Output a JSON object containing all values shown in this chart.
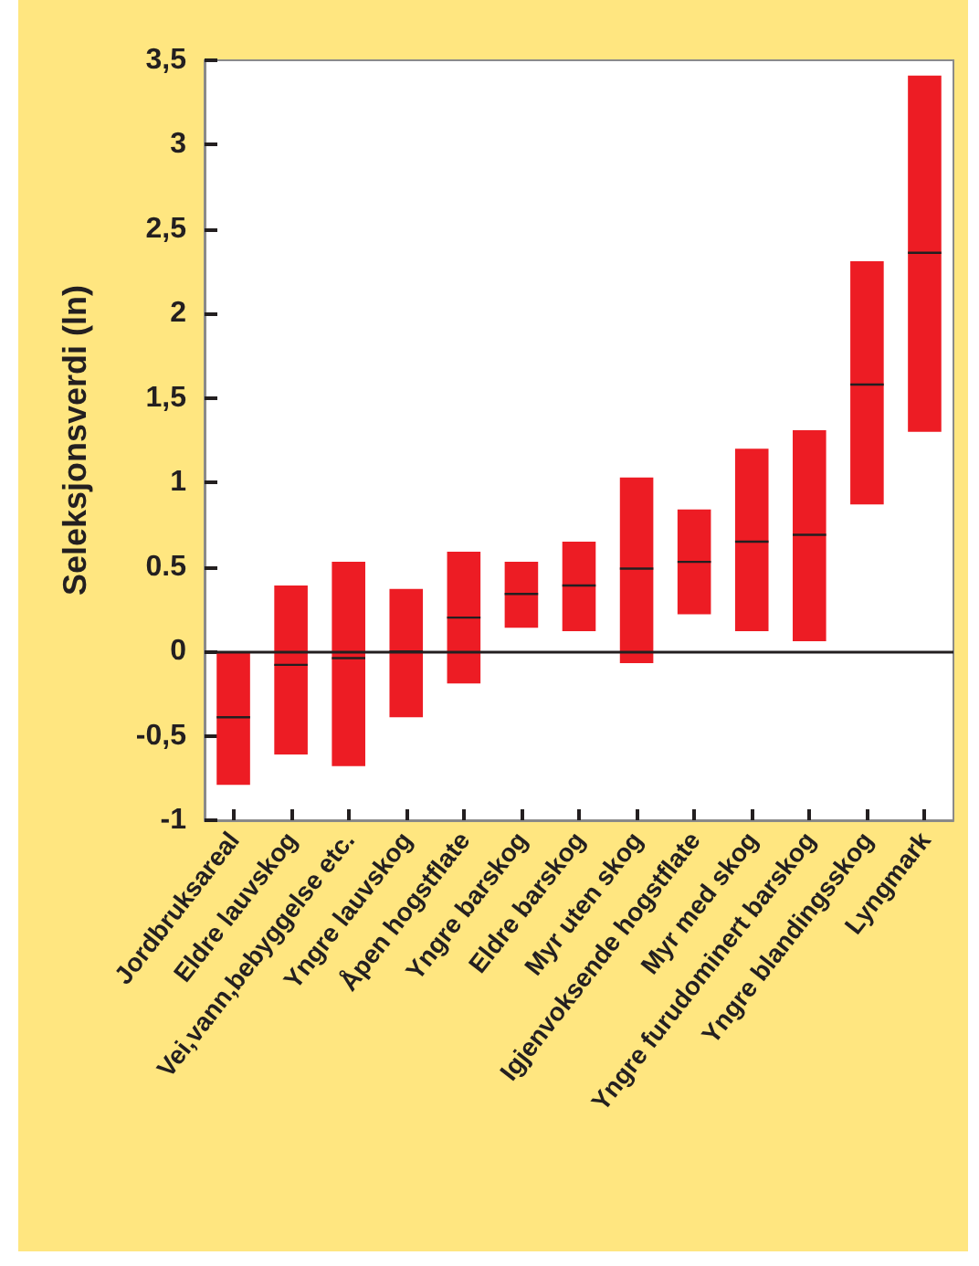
{
  "chart_data": {
    "type": "box",
    "ylabel": "Seleksjonsverdi (ln)",
    "categories": [
      "Jordbruksareal",
      "Eldre lauvskog",
      "Vei,vann,bebyggelse etc.",
      "Yngre lauvskog",
      "Åpen hogstflate",
      "Yngre barskog",
      "Eldre barskog",
      "Myr uten skog",
      "Igjenvoksende hogstflate",
      "Myr med skog",
      "Yngre furudominert barskog",
      "Yngre blandingsskog",
      "Lyngmark"
    ],
    "color": "#ed1c24",
    "boxes": [
      {
        "low": -0.79,
        "q1": -0.79,
        "median": -0.39,
        "q3": 0,
        "high": 0
      },
      {
        "low": -0.61,
        "q1": -0.61,
        "median": -0.08,
        "q3": 0.39,
        "high": 0.39
      },
      {
        "low": -0.68,
        "q1": -0.68,
        "median": -0.04,
        "q3": 0.53,
        "high": 0.53
      },
      {
        "low": -0.39,
        "q1": -0.39,
        "median": 0.0,
        "q3": 0.37,
        "high": 0.37
      },
      {
        "low": -0.19,
        "q1": -0.19,
        "median": 0.2,
        "q3": 0.59,
        "high": 0.59
      },
      {
        "low": 0.14,
        "q1": 0.14,
        "median": 0.34,
        "q3": 0.53,
        "high": 0.53
      },
      {
        "low": 0.12,
        "q1": 0.12,
        "median": 0.39,
        "q3": 0.65,
        "high": 0.65
      },
      {
        "low": -0.07,
        "q1": -0.07,
        "median": 0.49,
        "q3": 1.03,
        "high": 1.03
      },
      {
        "low": 0.22,
        "q1": 0.22,
        "median": 0.53,
        "q3": 0.84,
        "high": 0.84
      },
      {
        "low": 0.12,
        "q1": 0.12,
        "median": 0.65,
        "q3": 1.2,
        "high": 1.2
      },
      {
        "low": 0.06,
        "q1": 0.06,
        "median": 0.69,
        "q3": 1.31,
        "high": 1.31
      },
      {
        "low": 0.87,
        "q1": 0.87,
        "median": 1.58,
        "q3": 2.31,
        "high": 2.31
      },
      {
        "low": 1.3,
        "q1": 1.3,
        "median": 2.36,
        "q3": 3.41,
        "high": 3.41
      }
    ],
    "ylim": [
      -1,
      3.5
    ],
    "yticks": [
      -1,
      {
        "value": -0.5,
        "label": "-0,5"
      },
      0,
      0.5,
      1,
      {
        "value": 1.5,
        "label": "1,5"
      },
      2,
      {
        "value": 2.5,
        "label": "2,5"
      },
      3,
      {
        "value": 3.5,
        "label": "3,5"
      }
    ],
    "ref_lines": [
      {
        "axis": "y",
        "value": 0,
        "color": "#231f20"
      }
    ],
    "grid": false
  }
}
